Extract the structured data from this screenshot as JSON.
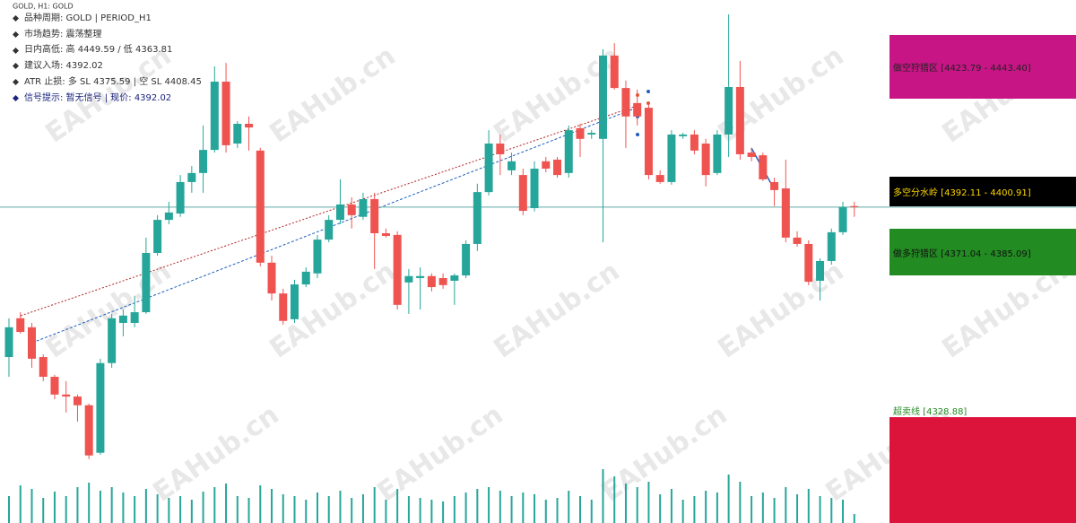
{
  "chart_data": {
    "type": "candlestick",
    "title": "GOLD, H1: GOLD",
    "up_color": "#26a69a",
    "down_color": "#ef5350",
    "ylim": [
      4314.5,
      4453.9
    ],
    "last_price": 4392.02,
    "ohlc": [
      [
        4347.2,
        4358.8,
        4341.3,
        4356.1
      ],
      [
        4358.8,
        4360.6,
        4354.2,
        4354.7
      ],
      [
        4356.1,
        4357.4,
        4344.0,
        4346.7
      ],
      [
        4347.2,
        4348.0,
        4340.0,
        4341.3
      ],
      [
        4341.3,
        4341.9,
        4334.6,
        4336.0
      ],
      [
        4336.0,
        4340.0,
        4330.6,
        4335.4
      ],
      [
        4335.4,
        4336.0,
        4327.9,
        4332.8
      ],
      [
        4332.8,
        4333.3,
        4316.7,
        4317.8
      ],
      [
        4318.6,
        4346.7,
        4318.0,
        4345.4
      ],
      [
        4345.4,
        4360.1,
        4344.0,
        4358.8
      ],
      [
        4357.4,
        4361.4,
        4353.4,
        4359.6
      ],
      [
        4357.4,
        4365.5,
        4356.1,
        4360.6
      ],
      [
        4360.6,
        4382.9,
        4360.1,
        4378.3
      ],
      [
        4378.3,
        4389.6,
        4377.5,
        4388.2
      ],
      [
        4388.2,
        4393.6,
        4386.9,
        4390.4
      ],
      [
        4390.1,
        4401.6,
        4389.1,
        4399.5
      ],
      [
        4399.5,
        4404.3,
        4396.3,
        4402.2
      ],
      [
        4402.2,
        4416.4,
        4396.3,
        4409.1
      ],
      [
        4409.1,
        4434.1,
        4408.3,
        4429.5
      ],
      [
        4429.5,
        4435.1,
        4408.3,
        4410.5
      ],
      [
        4411.0,
        4417.7,
        4409.7,
        4416.9
      ],
      [
        4416.9,
        4419.1,
        4408.9,
        4415.8
      ],
      [
        4408.9,
        4409.7,
        4374.3,
        4375.4
      ],
      [
        4375.4,
        4377.5,
        4364.1,
        4366.2
      ],
      [
        4366.2,
        4367.6,
        4356.9,
        4358.0
      ],
      [
        4358.5,
        4370.3,
        4357.4,
        4368.9
      ],
      [
        4368.9,
        4374.0,
        4368.1,
        4372.7
      ],
      [
        4372.2,
        4383.7,
        4370.8,
        4382.3
      ],
      [
        4382.3,
        4389.6,
        4381.5,
        4388.2
      ],
      [
        4388.2,
        4400.3,
        4386.9,
        4392.8
      ],
      [
        4392.8,
        4394.9,
        4385.6,
        4389.6
      ],
      [
        4389.1,
        4396.3,
        4388.2,
        4394.4
      ],
      [
        4394.4,
        4396.3,
        4373.5,
        4384.2
      ],
      [
        4384.2,
        4385.6,
        4382.9,
        4383.4
      ],
      [
        4383.7,
        4384.8,
        4361.4,
        4362.8
      ],
      [
        4369.5,
        4373.5,
        4360.1,
        4371.4
      ],
      [
        4370.8,
        4374.0,
        4361.4,
        4371.4
      ],
      [
        4371.4,
        4372.2,
        4366.8,
        4368.1
      ],
      [
        4370.8,
        4372.2,
        4367.6,
        4368.7
      ],
      [
        4370.0,
        4372.2,
        4362.8,
        4371.6
      ],
      [
        4371.6,
        4382.1,
        4370.8,
        4381.0
      ],
      [
        4381.0,
        4399.0,
        4378.9,
        4396.5
      ],
      [
        4396.5,
        4415.0,
        4395.5,
        4411.0
      ],
      [
        4411.0,
        4413.7,
        4401.6,
        4407.8
      ],
      [
        4403.0,
        4408.3,
        4401.6,
        4405.7
      ],
      [
        4401.6,
        4403.5,
        4389.6,
        4390.9
      ],
      [
        4391.7,
        4405.7,
        4390.7,
        4403.5
      ],
      [
        4405.7,
        4407.0,
        4402.4,
        4403.5
      ],
      [
        4406.2,
        4407.0,
        4400.8,
        4401.6
      ],
      [
        4402.2,
        4416.4,
        4400.8,
        4415.0
      ],
      [
        4415.6,
        4416.9,
        4407.0,
        4412.4
      ],
      [
        4413.7,
        4415.0,
        4412.4,
        4414.2
      ],
      [
        4412.4,
        4439.2,
        4381.5,
        4437.3
      ],
      [
        4437.3,
        4441.0,
        4427.1,
        4427.6
      ],
      [
        4427.6,
        4429.8,
        4409.7,
        4419.1
      ],
      [
        4423.1,
        4427.1,
        4416.4,
        4419.1
      ],
      [
        4421.7,
        4423.1,
        4400.3,
        4401.6
      ],
      [
        4401.6,
        4403.0,
        4399.0,
        4399.5
      ],
      [
        4399.5,
        4415.0,
        4398.7,
        4413.7
      ],
      [
        4413.2,
        4414.2,
        4412.4,
        4413.7
      ],
      [
        4413.7,
        4415.0,
        4407.8,
        4408.9
      ],
      [
        4411.0,
        4412.4,
        4398.2,
        4401.6
      ],
      [
        4402.2,
        4415.0,
        4401.6,
        4413.7
      ],
      [
        4413.7,
        4449.6,
        4407.0,
        4427.9
      ],
      [
        4427.9,
        4435.7,
        4406.2,
        4407.8
      ],
      [
        4408.3,
        4409.7,
        4405.7,
        4407.0
      ],
      [
        4407.5,
        4408.3,
        4399.8,
        4400.3
      ],
      [
        4399.5,
        4400.8,
        4392.3,
        4397.1
      ],
      [
        4397.6,
        4406.2,
        4381.5,
        4382.9
      ],
      [
        4382.9,
        4384.8,
        4380.2,
        4381.0
      ],
      [
        4381.0,
        4382.1,
        4368.7,
        4369.7
      ],
      [
        4370.0,
        4376.7,
        4364.1,
        4375.9
      ],
      [
        4375.9,
        4385.6,
        4374.8,
        4384.5
      ],
      [
        4384.5,
        4393.6,
        4383.7,
        4392.0
      ],
      [
        4392.3,
        4393.6,
        4389.1,
        4392.0
      ]
    ],
    "volume": [
      30,
      42,
      38,
      28,
      35,
      30,
      40,
      45,
      36,
      40,
      34,
      30,
      38,
      32,
      28,
      30,
      26,
      35,
      40,
      44,
      30,
      28,
      42,
      38,
      32,
      30,
      26,
      34,
      30,
      36,
      28,
      32,
      40,
      26,
      38,
      30,
      28,
      26,
      24,
      30,
      34,
      38,
      40,
      36,
      30,
      34,
      32,
      26,
      28,
      36,
      30,
      26,
      60,
      52,
      44,
      40,
      46,
      32,
      38,
      26,
      30,
      36,
      34,
      54,
      46,
      30,
      34,
      28,
      40,
      32,
      38,
      30,
      28,
      26,
      10
    ]
  },
  "info": {
    "lines": [
      "品种周期: GOLD | PERIOD_H1",
      "市场趋势: 震荡整理",
      "日内高低: 高 4449.59 / 低 4363.81",
      "建议入场: 4392.02",
      "ATR 止损: 多 SL 4375.59 | 空 SL 4408.45",
      "信号提示: 暂无信号 | 现价: 4392.02"
    ]
  },
  "zones": [
    "做空狩猎区 [4423.79 - 4443.40]",
    "多空分水岭 [4392.11 - 4400.91]",
    "做多狩猎区 [4371.04 - 4385.09]",
    "超卖线 [4328.88]"
  ],
  "watermark": "EAHub.cn"
}
